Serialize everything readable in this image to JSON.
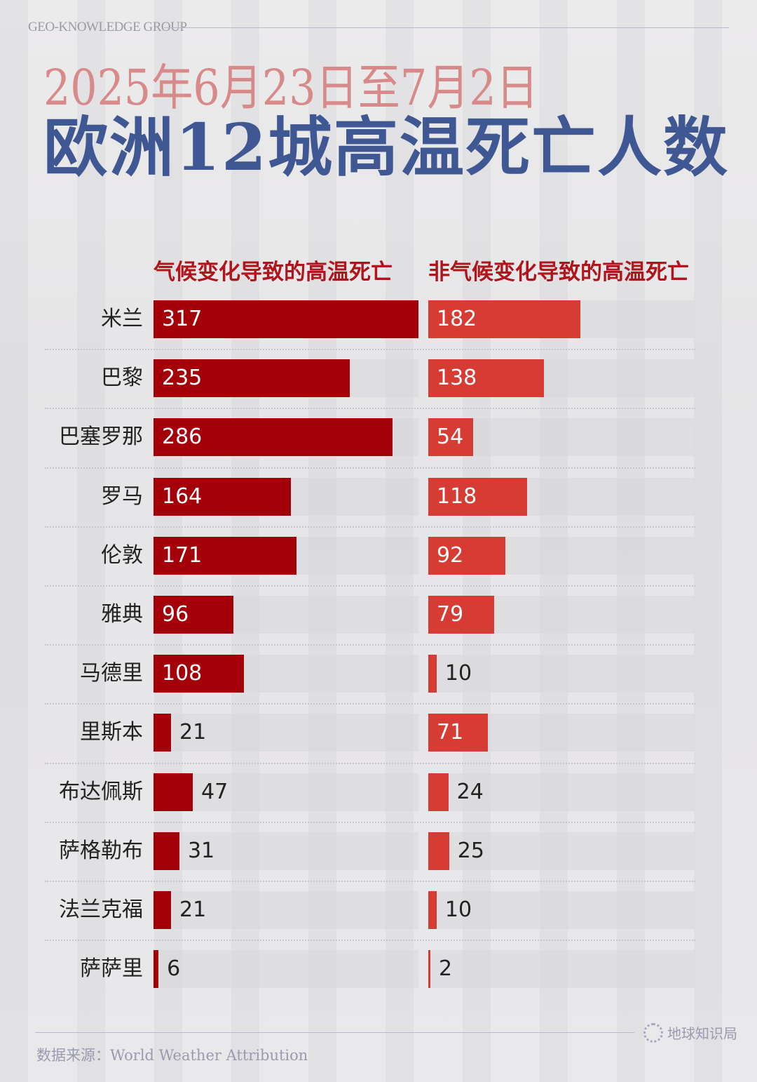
{
  "brand": "GEO-KNOWLEDGE GROUP",
  "subtitle": "2025年6月23日至7月2日",
  "title": "欧洲12城高温死亡人数",
  "footer": {
    "source": "数据来源：World Weather Attribution",
    "logo_text": "地球知识局"
  },
  "colors": {
    "climate": "#a3000a",
    "non_climate": "#d63b34",
    "title": "#3f5793",
    "subtitle": "#d88a8a"
  },
  "chart_data": {
    "type": "bar",
    "orientation": "horizontal",
    "title": "欧洲12城高温死亡人数",
    "subtitle": "2025年6月23日至7月2日",
    "categories": [
      "米兰",
      "巴黎",
      "巴塞罗那",
      "罗马",
      "伦敦",
      "雅典",
      "马德里",
      "里斯本",
      "布达佩斯",
      "萨格勒布",
      "法兰克福",
      "萨萨里"
    ],
    "series": [
      {
        "name": "气候变化导致的高温死亡",
        "values": [
          317,
          235,
          286,
          164,
          171,
          96,
          108,
          21,
          47,
          31,
          21,
          6
        ]
      },
      {
        "name": "非气候变化导致的高温死亡",
        "values": [
          182,
          138,
          54,
          118,
          92,
          79,
          10,
          71,
          24,
          25,
          10,
          2
        ]
      }
    ],
    "xlim": [
      0,
      317
    ],
    "grid": false,
    "data_labels": true
  }
}
